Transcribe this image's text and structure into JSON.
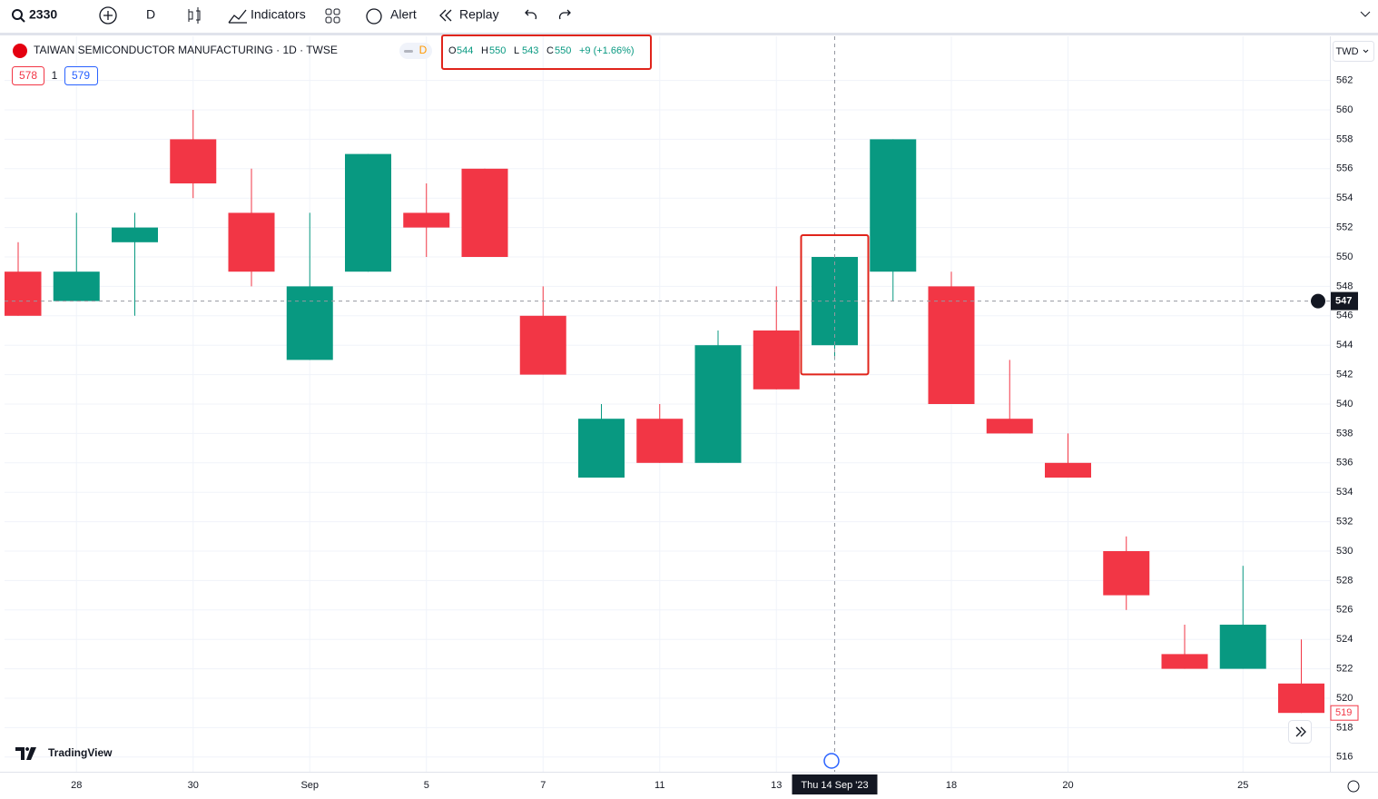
{
  "toolbar": {
    "symbol": "2330",
    "interval": "D",
    "indicators": "Indicators",
    "alert": "Alert",
    "replay": "Replay"
  },
  "header": {
    "title": "TAIWAN SEMICONDUCTOR MANUFACTURING · 1D · TWSE",
    "badge": "D",
    "legend": [
      {
        "label": "O",
        "value": 544
      },
      {
        "label": "H",
        "value": 550
      },
      {
        "label": "L",
        "value": 543
      },
      {
        "label": "C",
        "value": 550
      }
    ],
    "change": "+9 (+1.66%)",
    "sell": 578,
    "spread": 1,
    "buy": 579,
    "currency": "TWD"
  },
  "logo": "TradingView",
  "chart_data": {
    "type": "candlestick",
    "categories": [
      null,
      "28",
      null,
      "30",
      null,
      "Sep",
      null,
      "5",
      null,
      "7",
      null,
      "11",
      null,
      "13",
      "Thu 14 Sep '23",
      null,
      "18",
      null,
      "20",
      null,
      null,
      "25",
      null
    ],
    "open": [
      549,
      547,
      551,
      558,
      553,
      543,
      549,
      553,
      556,
      546,
      535,
      539,
      536,
      545,
      544,
      549,
      548,
      539,
      536,
      530,
      523,
      522,
      521
    ],
    "high": [
      551,
      553,
      553,
      560,
      556,
      553,
      557,
      555,
      556,
      548,
      540,
      540,
      545,
      548,
      550,
      558,
      549,
      543,
      538,
      531,
      525,
      529,
      524
    ],
    "low": [
      546,
      547,
      546,
      554,
      548,
      543,
      549,
      550,
      550,
      542,
      535,
      536,
      536,
      541,
      543,
      547,
      540,
      538,
      535,
      526,
      522,
      522,
      519
    ],
    "close": [
      546,
      549,
      552,
      555,
      549,
      548,
      557,
      552,
      550,
      542,
      539,
      536,
      544,
      541,
      550,
      558,
      540,
      538,
      535,
      527,
      522,
      525,
      519
    ],
    "up_color": "#089981",
    "down_color": "#f23645",
    "ylim": [
      515,
      565
    ],
    "yticks": [
      516,
      518,
      520,
      522,
      524,
      526,
      528,
      530,
      532,
      534,
      536,
      538,
      540,
      542,
      544,
      546,
      548,
      550,
      552,
      554,
      556,
      558,
      560,
      562
    ],
    "grid": true,
    "crosshair_price": 547,
    "crosshair_index": 14
  }
}
